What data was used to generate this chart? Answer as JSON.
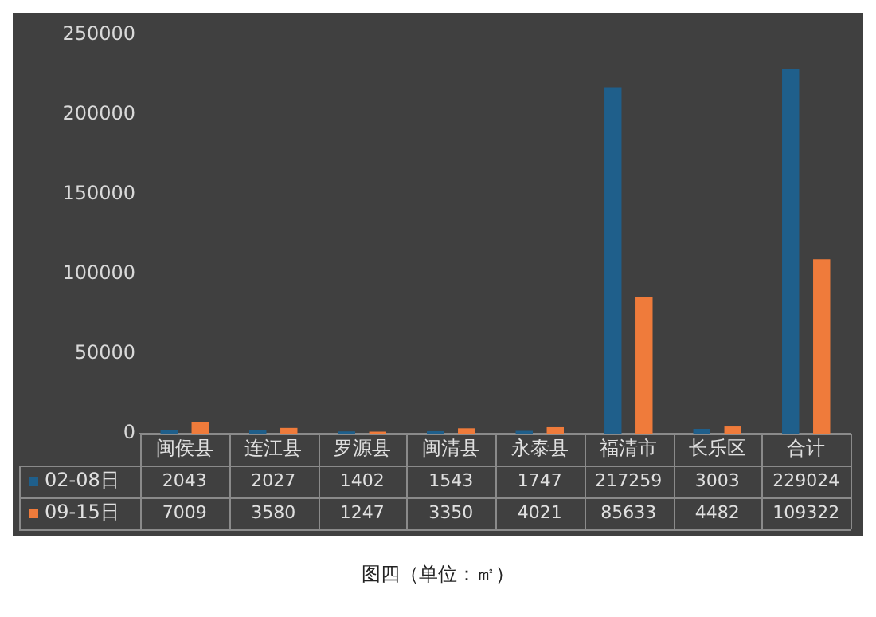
{
  "chart_data": {
    "type": "bar",
    "categories": [
      "闽侯县",
      "连江县",
      "罗源县",
      "闽清县",
      "永泰县",
      "福清市",
      "长乐区",
      "合计"
    ],
    "series": [
      {
        "name": "02-08日",
        "color": "#1f5f8b",
        "values": [
          2043,
          2027,
          1402,
          1543,
          1747,
          217259,
          3003,
          229024
        ]
      },
      {
        "name": "09-15日",
        "color": "#ef7b3b",
        "values": [
          7009,
          3580,
          1247,
          3350,
          4021,
          85633,
          4482,
          109322
        ]
      }
    ],
    "ylim": [
      0,
      250000
    ],
    "yticks": [
      0,
      50000,
      100000,
      150000,
      200000,
      250000
    ],
    "grid": false,
    "legend": "bottom",
    "data_labels": true,
    "annotations": [
      "图四（单位：㎡）"
    ]
  }
}
